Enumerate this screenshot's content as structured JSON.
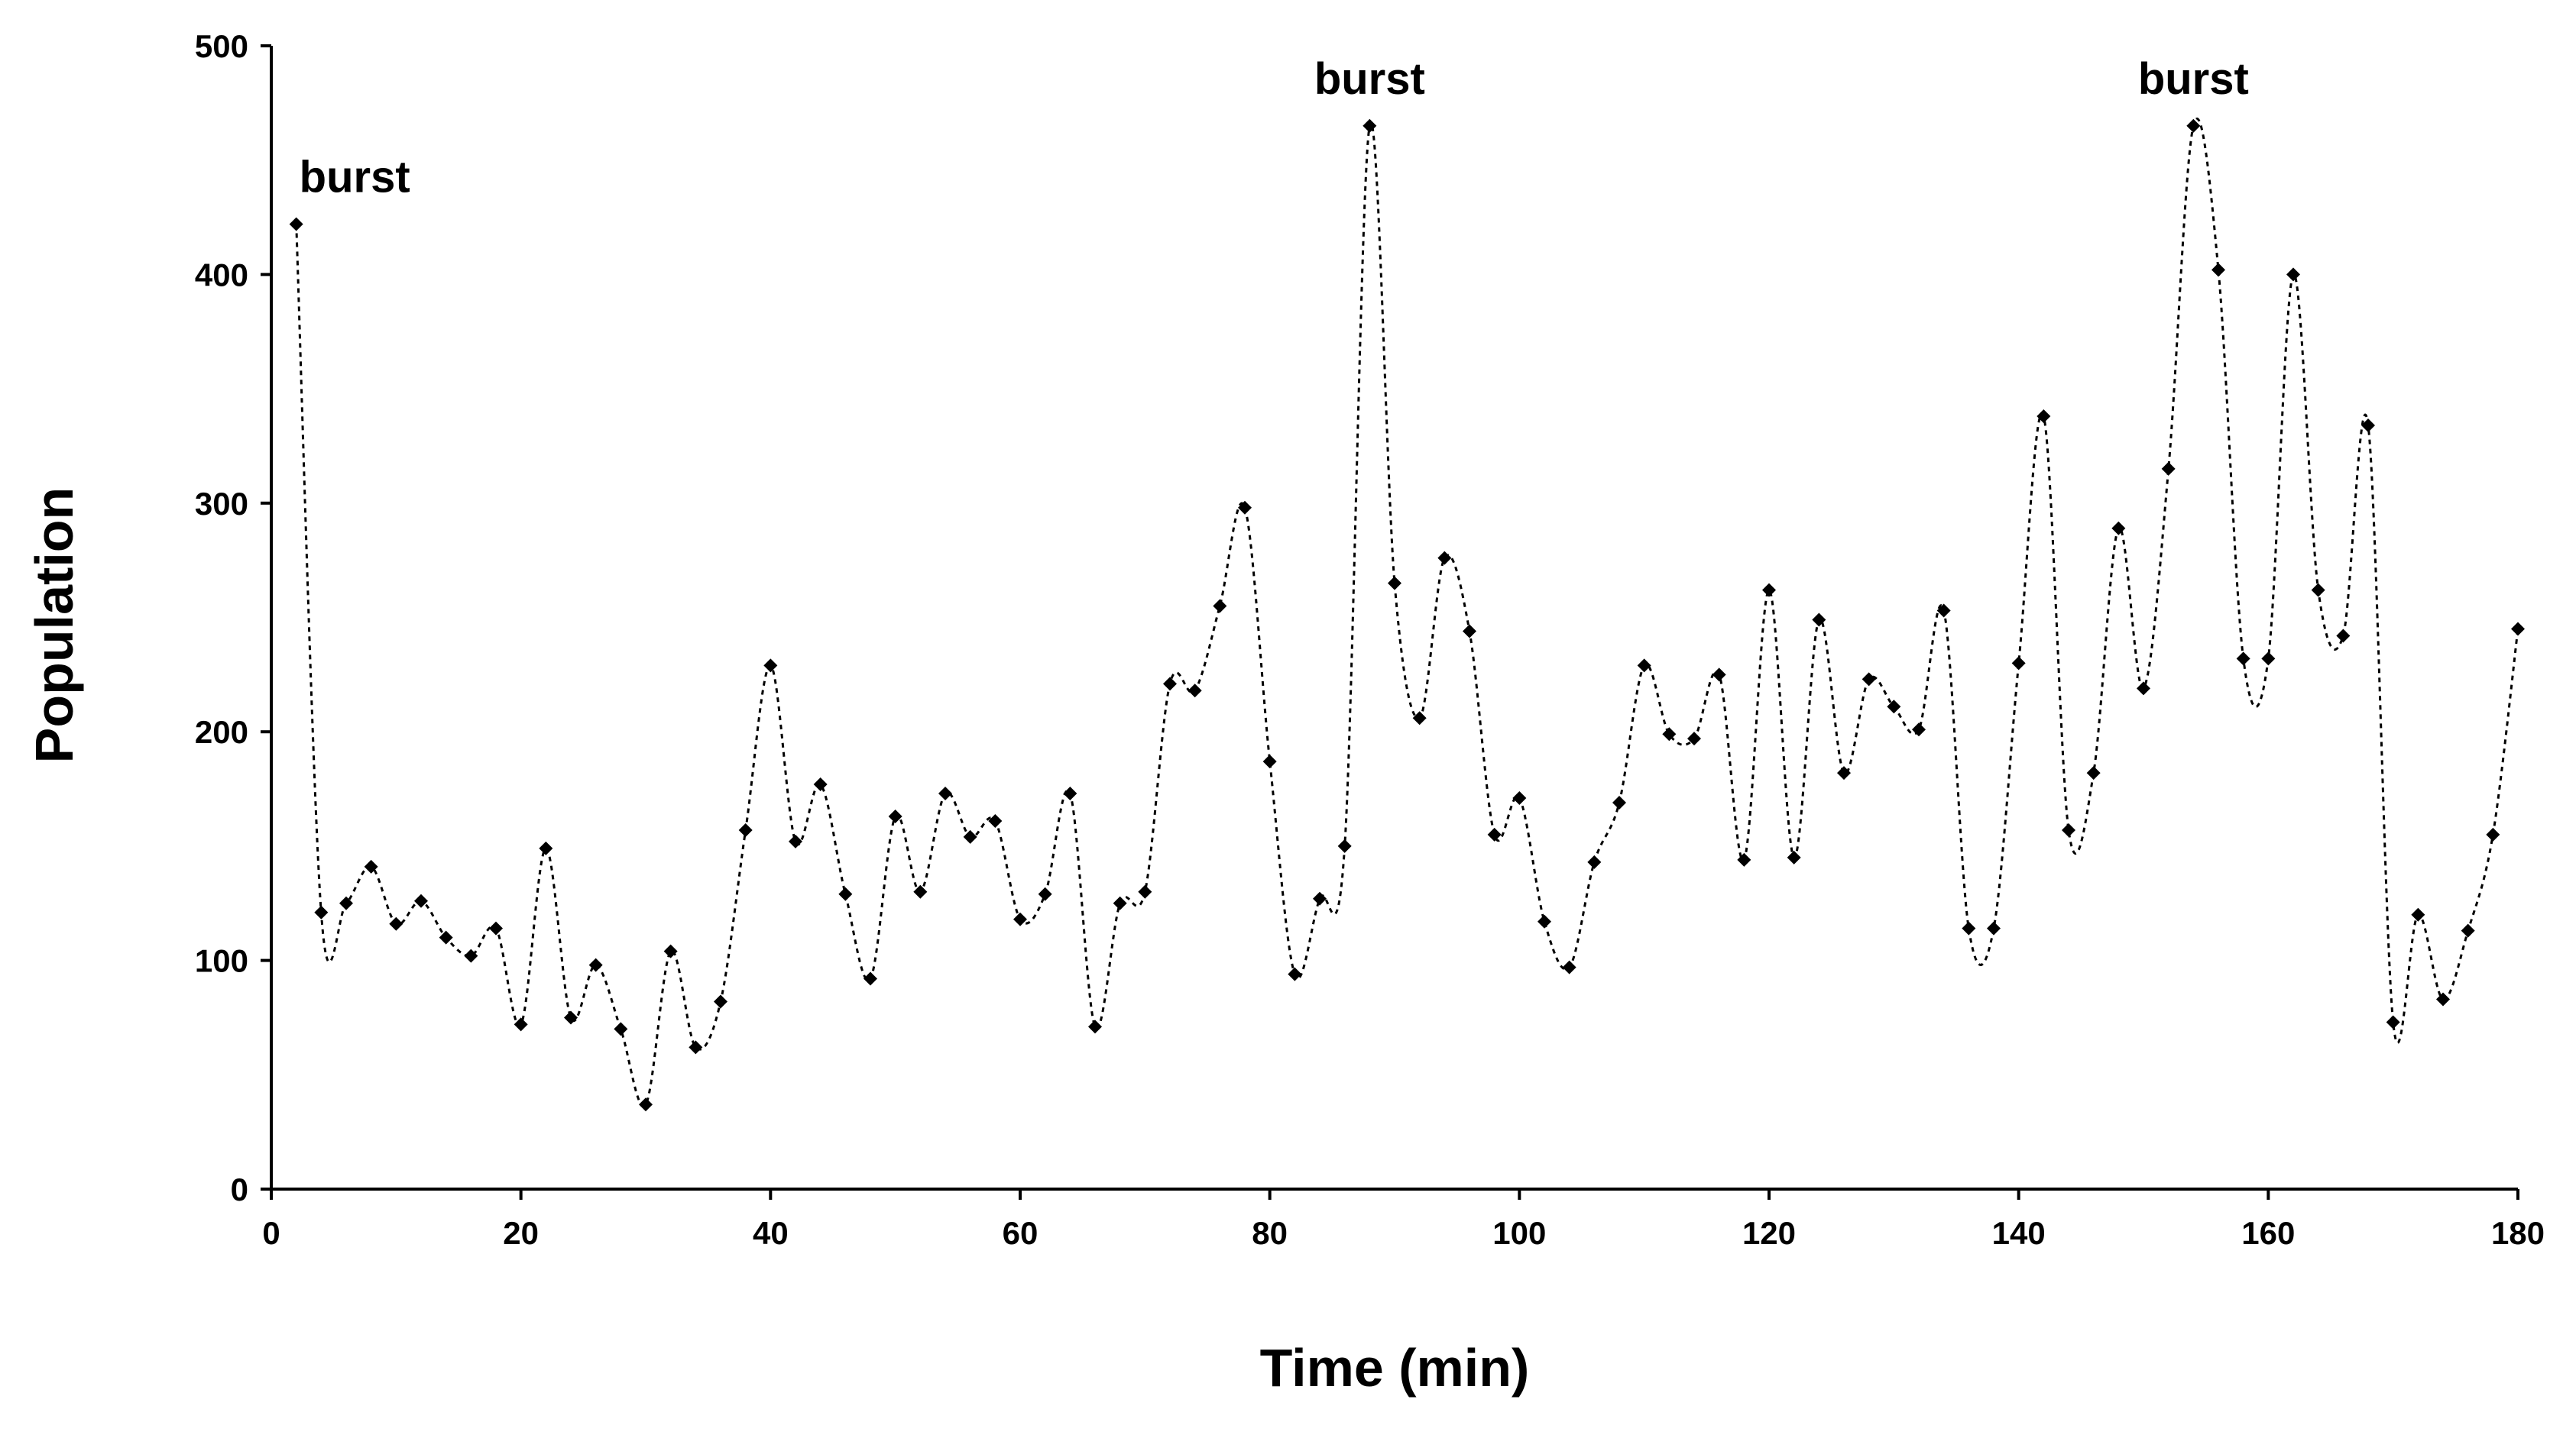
{
  "chart_data": {
    "type": "line",
    "title": "",
    "xlabel": "Time (min)",
    "ylabel": "Population",
    "xlim": [
      0,
      180
    ],
    "ylim": [
      0,
      500
    ],
    "xticks": [
      0,
      20,
      40,
      60,
      80,
      100,
      120,
      140,
      160,
      180
    ],
    "yticks": [
      0,
      100,
      200,
      300,
      400,
      500
    ],
    "grid": false,
    "legend": "none",
    "colors": {
      "series": "#000000"
    },
    "series": [
      {
        "x": [
          2,
          4,
          6,
          8,
          10,
          12,
          14,
          16,
          18,
          20,
          22,
          24,
          26,
          28,
          30,
          32,
          34,
          36,
          38,
          40,
          42,
          44,
          46,
          48,
          50,
          52,
          54,
          56,
          58,
          60,
          62,
          64,
          66,
          68,
          70,
          72,
          74,
          76,
          78,
          80,
          82,
          84,
          86,
          88,
          90,
          92,
          94,
          96,
          98,
          100,
          102,
          104,
          106,
          108,
          110,
          112,
          114,
          116,
          118,
          120,
          122,
          124,
          126,
          128,
          130,
          132,
          134,
          136,
          138,
          140,
          142,
          144,
          146,
          148,
          150,
          152,
          154,
          156,
          158,
          160,
          162,
          164,
          166,
          168,
          170,
          172,
          174,
          176,
          178,
          180
        ],
        "y": [
          422,
          121,
          125,
          141,
          116,
          126,
          110,
          102,
          114,
          72,
          149,
          75,
          98,
          70,
          37,
          104,
          62,
          82,
          157,
          229,
          152,
          177,
          129,
          92,
          163,
          130,
          173,
          154,
          161,
          118,
          129,
          173,
          71,
          125,
          130,
          221,
          218,
          255,
          298,
          187,
          94,
          127,
          150,
          465,
          265,
          206,
          276,
          244,
          155,
          171,
          117,
          97,
          143,
          169,
          229,
          199,
          197,
          225,
          144,
          262,
          145,
          249,
          182,
          223,
          211,
          201,
          253,
          114,
          114,
          230,
          338,
          157,
          182,
          289,
          219,
          315,
          465,
          402,
          232,
          232,
          400,
          262,
          242,
          334,
          73,
          120,
          83,
          113,
          155,
          245
        ]
      }
    ],
    "annotations": [
      {
        "text": "burst",
        "x": 2,
        "y": 422
      },
      {
        "text": "burst",
        "x": 88,
        "y": 465
      },
      {
        "text": "burst",
        "x": 154,
        "y": 465
      }
    ]
  }
}
